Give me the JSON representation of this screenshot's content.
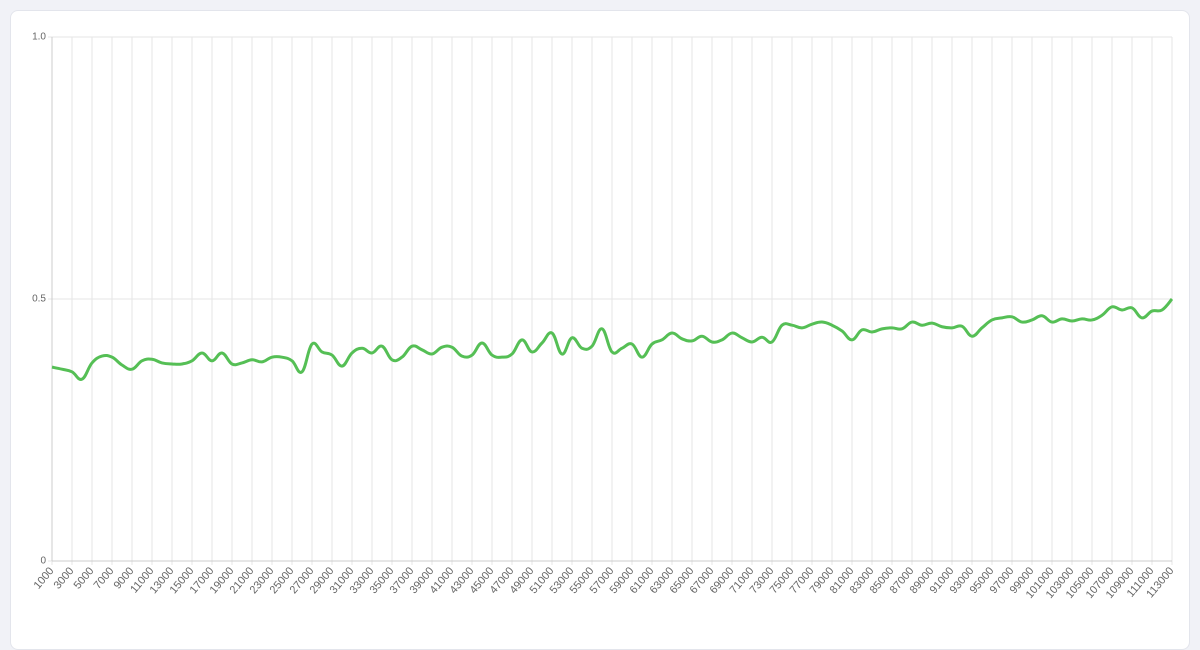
{
  "chart_data": {
    "type": "line",
    "x": [
      1000,
      2000,
      3000,
      4000,
      5000,
      6000,
      7000,
      8000,
      9000,
      10000,
      11000,
      12000,
      13000,
      14000,
      15000,
      16000,
      17000,
      18000,
      19000,
      20000,
      21000,
      22000,
      23000,
      24000,
      25000,
      26000,
      27000,
      28000,
      29000,
      30000,
      31000,
      32000,
      33000,
      34000,
      35000,
      36000,
      37000,
      38000,
      39000,
      40000,
      41000,
      42000,
      43000,
      44000,
      45000,
      46000,
      47000,
      48000,
      49000,
      50000,
      51000,
      52000,
      53000,
      54000,
      55000,
      56000,
      57000,
      58000,
      59000,
      60000,
      61000,
      62000,
      63000,
      64000,
      65000,
      66000,
      67000,
      68000,
      69000,
      70000,
      71000,
      72000,
      73000,
      74000,
      75000,
      76000,
      77000,
      78000,
      79000,
      80000,
      81000,
      82000,
      83000,
      84000,
      85000,
      86000,
      87000,
      88000,
      89000,
      90000,
      91000,
      92000,
      93000,
      94000,
      95000,
      96000,
      97000,
      98000,
      99000,
      100000,
      101000,
      102000,
      103000,
      104000,
      105000,
      106000,
      107000,
      108000,
      109000,
      110000,
      111000,
      112000,
      113000
    ],
    "series": [
      {
        "color": "#55bf55",
        "values": [
          0.37,
          0.366,
          0.361,
          0.347,
          0.378,
          0.391,
          0.389,
          0.374,
          0.366,
          0.382,
          0.385,
          0.378,
          0.376,
          0.376,
          0.382,
          0.397,
          0.382,
          0.397,
          0.376,
          0.378,
          0.384,
          0.38,
          0.389,
          0.389,
          0.382,
          0.361,
          0.414,
          0.399,
          0.393,
          0.372,
          0.397,
          0.406,
          0.397,
          0.41,
          0.384,
          0.389,
          0.41,
          0.403,
          0.395,
          0.408,
          0.408,
          0.391,
          0.393,
          0.416,
          0.393,
          0.389,
          0.395,
          0.422,
          0.399,
          0.416,
          0.435,
          0.395,
          0.426,
          0.406,
          0.41,
          0.443,
          0.399,
          0.406,
          0.414,
          0.389,
          0.414,
          0.422,
          0.435,
          0.424,
          0.42,
          0.429,
          0.418,
          0.422,
          0.435,
          0.426,
          0.418,
          0.427,
          0.418,
          0.45,
          0.45,
          0.445,
          0.452,
          0.456,
          0.45,
          0.439,
          0.422,
          0.441,
          0.437,
          0.443,
          0.445,
          0.443,
          0.456,
          0.45,
          0.454,
          0.447,
          0.445,
          0.448,
          0.429,
          0.445,
          0.46,
          0.464,
          0.466,
          0.456,
          0.46,
          0.468,
          0.456,
          0.462,
          0.458,
          0.462,
          0.46,
          0.469,
          0.485,
          0.479,
          0.483,
          0.464,
          0.477,
          0.479,
          0.5
        ]
      }
    ],
    "xlim": [
      1000,
      113000
    ],
    "xticks": [
      1000,
      3000,
      5000,
      7000,
      9000,
      11000,
      13000,
      15000,
      17000,
      19000,
      21000,
      23000,
      25000,
      27000,
      29000,
      31000,
      33000,
      35000,
      37000,
      39000,
      41000,
      43000,
      45000,
      47000,
      49000,
      51000,
      53000,
      55000,
      57000,
      59000,
      61000,
      63000,
      65000,
      67000,
      69000,
      71000,
      73000,
      75000,
      77000,
      79000,
      81000,
      83000,
      85000,
      87000,
      89000,
      91000,
      93000,
      95000,
      97000,
      99000,
      101000,
      103000,
      105000,
      107000,
      109000,
      111000,
      113000
    ],
    "ylim": [
      0,
      1
    ],
    "yticks": [
      0,
      0.5,
      {
        "value": 1,
        "label": "1.0"
      }
    ],
    "grid": true
  }
}
